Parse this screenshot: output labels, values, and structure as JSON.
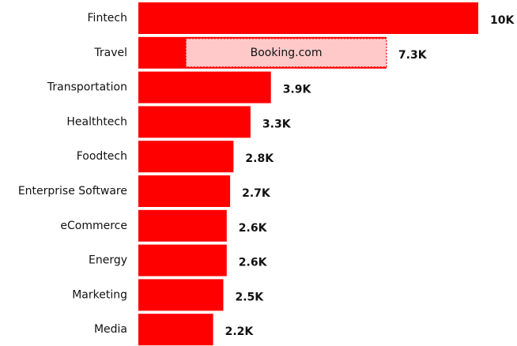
{
  "chart_data": {
    "type": "bar",
    "orientation": "horizontal",
    "color": "#ff0000",
    "categories": [
      "Fintech",
      "Travel",
      "Transportation",
      "Healthtech",
      "Foodtech",
      "Enterprise Software",
      "eCommerce",
      "Energy",
      "Marketing",
      "Media"
    ],
    "values": [
      10,
      7.3,
      3.9,
      3.3,
      2.8,
      2.7,
      2.6,
      2.6,
      2.5,
      2.2
    ],
    "value_labels": [
      "10K",
      "7.3K",
      "3.9K",
      "3.3K",
      "2.8K",
      "2.7K",
      "2.6K",
      "2.6K",
      "2.5K",
      "2.2K"
    ],
    "highlight": {
      "category_index": 1,
      "label": "Booking.com",
      "value": 5.9,
      "color": "#ffc9c9"
    }
  }
}
